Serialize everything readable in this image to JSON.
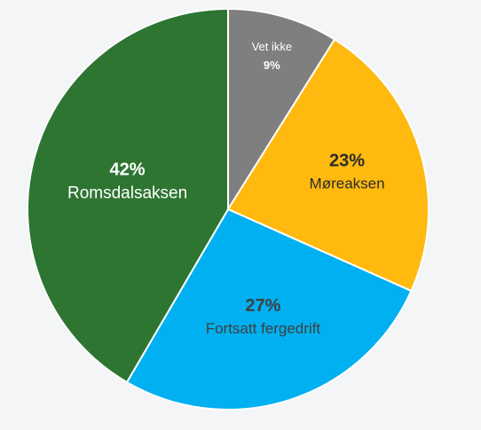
{
  "chart_data": {
    "type": "pie",
    "categories": [
      "Vet ikke",
      "Møreaksen",
      "Fortsatt fergedrift",
      "Romsdalsaksen"
    ],
    "values": [
      9,
      23,
      27,
      42
    ],
    "value_labels": [
      "9%",
      "23%",
      "27%",
      "42%"
    ],
    "colors": [
      "#7f7f7f",
      "#ffb90f",
      "#00b0f0",
      "#2e7532"
    ]
  }
}
